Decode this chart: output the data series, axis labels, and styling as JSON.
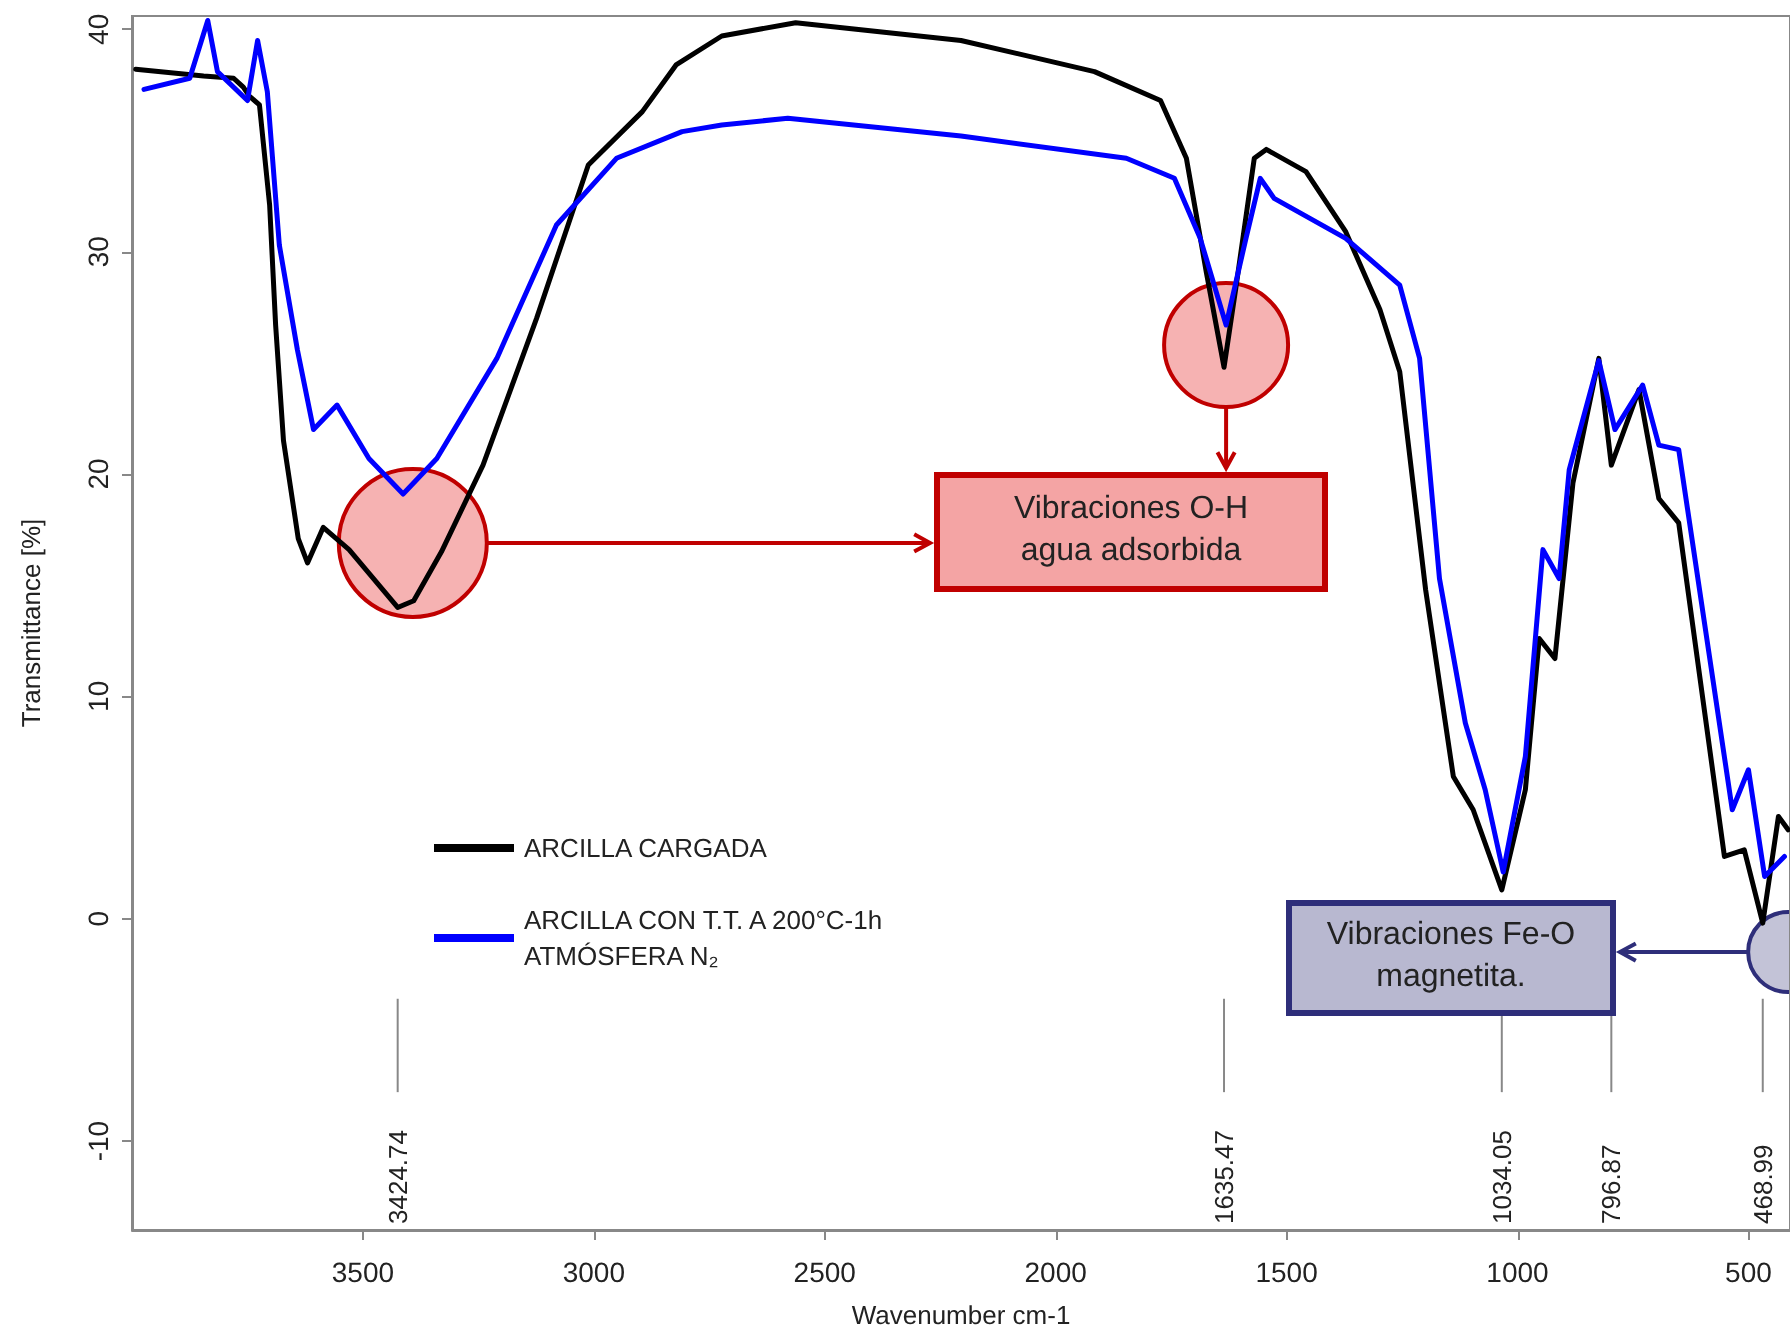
{
  "chart_data": {
    "type": "line",
    "xlabel": "Wavenumber cm-1",
    "ylabel": "Transmittance [%]",
    "xlim": [
      4000,
      410
    ],
    "xticks": [
      3500,
      3000,
      2500,
      2000,
      1500,
      1000,
      500
    ],
    "ylim": [
      -14,
      40.6
    ],
    "yticks": [
      -10,
      0,
      10,
      20,
      30,
      40
    ],
    "grid": false,
    "legend": "bottom left",
    "marker": "none",
    "line_style": "solid",
    "series": [
      {
        "name": "ARCILLA CARGADA",
        "color": "#000000",
        "x": [
          3992,
          3845,
          3780,
          3759,
          3746,
          3724,
          3702,
          3689,
          3672,
          3640,
          3620,
          3586,
          3530,
          3424.74,
          3390,
          3330,
          3240,
          3124,
          3012,
          2895,
          2822,
          2723,
          2563,
          2205,
          1916,
          1773,
          1717,
          1674,
          1635.47,
          1609,
          1570,
          1544,
          1458,
          1372,
          1298,
          1255,
          1199,
          1139,
          1096,
          1034.05,
          983,
          953,
          919,
          880,
          824,
          796.87,
          737,
          694,
          651,
          552,
          509,
          468.99,
          435,
          414
        ],
        "values": [
          38.2,
          37.9,
          37.8,
          37.4,
          37.0,
          36.6,
          32.1,
          26.7,
          21.5,
          17.1,
          16.0,
          17.6,
          16.6,
          14.0,
          14.3,
          16.5,
          20.4,
          27.0,
          33.9,
          36.3,
          38.4,
          39.7,
          40.3,
          39.5,
          38.1,
          36.8,
          34.2,
          29.1,
          24.8,
          28.5,
          34.2,
          34.6,
          33.6,
          30.9,
          27.4,
          24.6,
          14.8,
          6.4,
          4.9,
          1.3,
          5.8,
          12.6,
          11.7,
          19.6,
          25.2,
          20.4,
          23.8,
          18.9,
          17.8,
          2.8,
          3.1,
          -0.2,
          4.6,
          4.0
        ]
      },
      {
        "name": "ARCILLA CON T.T. A 200°C-1h\nATMÓSFERA N₂",
        "color": "#0000ff",
        "x": [
          3974,
          3875,
          3836,
          3815,
          3750,
          3728,
          3707,
          3681,
          3642,
          3607,
          3556,
          3487,
          3413,
          3340,
          3210,
          3081,
          2951,
          2809,
          2723,
          2580,
          2205,
          1847,
          1743,
          1687,
          1631,
          1588,
          1557,
          1527,
          1372,
          1255,
          1212,
          1169,
          1113,
          1070,
          1031,
          983,
          945,
          910,
          888,
          824,
          789,
          729,
          694,
          651,
          535,
          500,
          465,
          422
        ],
        "values": [
          37.3,
          37.8,
          40.4,
          38.1,
          36.8,
          39.5,
          37.2,
          30.3,
          25.6,
          22.0,
          23.1,
          20.7,
          19.1,
          20.7,
          25.2,
          31.2,
          34.2,
          35.4,
          35.7,
          36.0,
          35.2,
          34.2,
          33.3,
          30.6,
          26.7,
          30.6,
          33.3,
          32.4,
          30.6,
          28.5,
          25.2,
          15.3,
          8.8,
          5.8,
          2.1,
          7.3,
          16.6,
          15.3,
          20.2,
          25.1,
          22.0,
          24.0,
          21.3,
          21.1,
          4.9,
          6.7,
          1.9,
          2.8
        ]
      }
    ],
    "x2lim": [
      4000,
      410
    ],
    "x2ticks": [
      3424.74,
      1635.47,
      1034.05,
      796.87,
      468.99
    ],
    "annotations": [
      "Vibraciones O-H\nagua adsorbida",
      "Vibraciones Fe-O\nmagnetita."
    ]
  }
}
